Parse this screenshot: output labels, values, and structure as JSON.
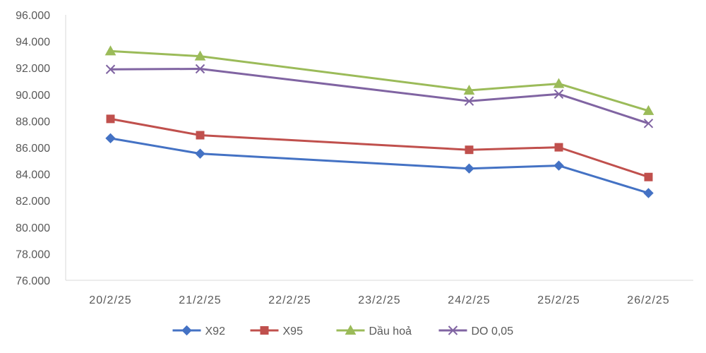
{
  "chart_data": {
    "type": "line",
    "title": "",
    "xlabel": "",
    "ylabel": "",
    "categories": [
      "20/2/25",
      "21/2/25",
      "22/2/25",
      "23/2/25",
      "24/2/25",
      "25/2/25",
      "26/2/25"
    ],
    "ylim": [
      76000,
      96000
    ],
    "ytick_step": 2000,
    "ytick_labels": [
      "76.000",
      "78.000",
      "80.000",
      "82.000",
      "84.000",
      "86.000",
      "88.000",
      "90.000",
      "92.000",
      "94.000",
      "96.000"
    ],
    "grid": false,
    "legend_position": "bottom",
    "series": [
      {
        "name": "X92",
        "color": "#4472C4",
        "marker": "diamond",
        "values": [
          86700,
          85540,
          null,
          null,
          84420,
          84640,
          82570
        ]
      },
      {
        "name": "X95",
        "color": "#C0504D",
        "marker": "square",
        "values": [
          88160,
          86930,
          null,
          null,
          85830,
          86020,
          83780
        ]
      },
      {
        "name": "Dầu hoả",
        "color": "#9BBB59",
        "marker": "triangle",
        "values": [
          93270,
          92880,
          null,
          null,
          90310,
          90810,
          88770
        ]
      },
      {
        "name": "DO 0,05",
        "color": "#8064A2",
        "marker": "x",
        "values": [
          91890,
          91930,
          null,
          null,
          89500,
          90030,
          87820
        ]
      }
    ]
  }
}
